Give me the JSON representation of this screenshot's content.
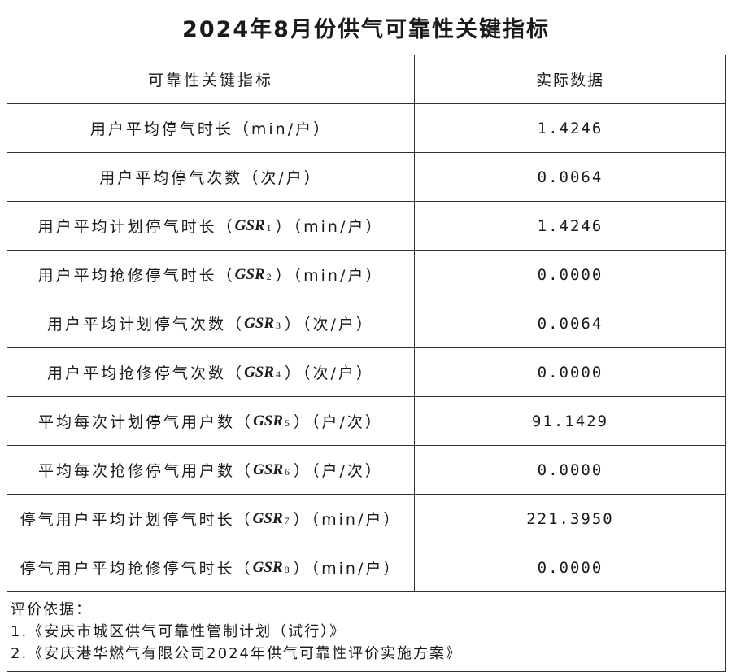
{
  "title": "2024年8月份供气可靠性关键指标",
  "header": {
    "indicator": "可靠性关键指标",
    "value": "实际数据"
  },
  "rows": [
    {
      "pre": "用户平均停气时长（min/户）",
      "code": "",
      "sub": "",
      "post": "",
      "value": "1.4246"
    },
    {
      "pre": "用户平均停气次数（次/户）",
      "code": "",
      "sub": "",
      "post": "",
      "value": "0.0064"
    },
    {
      "pre": "用户平均计划停气时长（",
      "code": "GSR",
      "sub": "1",
      "post": "）（min/户）",
      "value": "1.4246"
    },
    {
      "pre": "用户平均抢修停气时长（",
      "code": "GSR",
      "sub": "2",
      "post": "）（min/户）",
      "value": "0.0000"
    },
    {
      "pre": "用户平均计划停气次数（",
      "code": "GSR",
      "sub": "3",
      "post": "）（次/户）",
      "value": "0.0064"
    },
    {
      "pre": "用户平均抢修停气次数（",
      "code": "GSR",
      "sub": "4",
      "post": "）（次/户）",
      "value": "0.0000"
    },
    {
      "pre": "平均每次计划停气用户数（",
      "code": "GSR",
      "sub": "5",
      "post": "）（户/次）",
      "value": "91.1429"
    },
    {
      "pre": "平均每次抢修停气用户数（",
      "code": "GSR",
      "sub": "6",
      "post": "）（户/次）",
      "value": "0.0000"
    },
    {
      "pre": "停气用户平均计划停气时长（",
      "code": "GSR",
      "sub": "7",
      "post": "）（min/户）",
      "value": "221.3950"
    },
    {
      "pre": "停气用户平均抢修停气时长（",
      "code": "GSR",
      "sub": "8",
      "post": "）（min/户）",
      "value": "0.0000"
    }
  ],
  "footer": {
    "heading": "评价依据：",
    "items": [
      "1.《安庆市城区供气可靠性管制计划（试行）》",
      "2.《安庆港华燃气有限公司2024年供气可靠性评价实施方案》"
    ]
  }
}
